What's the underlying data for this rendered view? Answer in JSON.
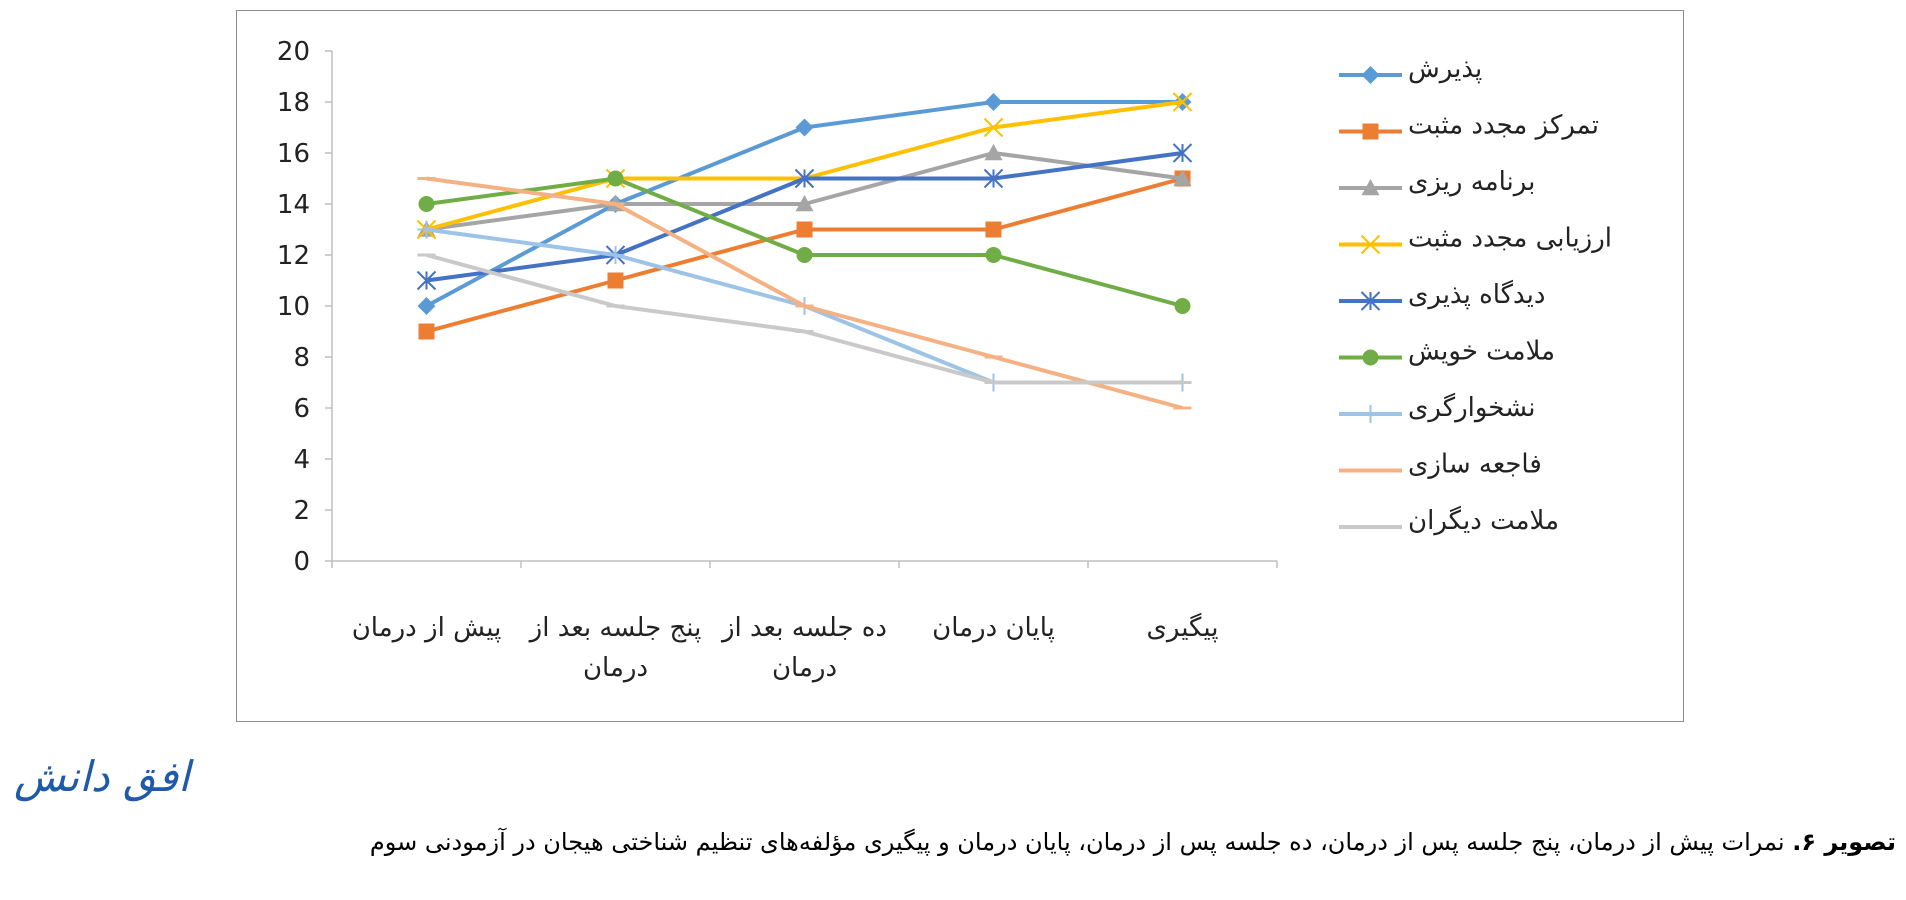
{
  "chart_data": {
    "type": "line",
    "categories": [
      "پیش از درمان",
      "پنج جلسه بعد از درمان",
      "ده جلسه بعد از درمان",
      "پایان درمان",
      "پیگیری"
    ],
    "category_lines": [
      [
        "پیش از درمان"
      ],
      [
        "پنج جلسه بعد از",
        "درمان"
      ],
      [
        "ده جلسه بعد از",
        "درمان"
      ],
      [
        "پایان درمان"
      ],
      [
        "پیگیری"
      ]
    ],
    "ylim": [
      0,
      20
    ],
    "ytick_step": 2,
    "yticks": [
      "0",
      "2",
      "4",
      "6",
      "8",
      "10",
      "12",
      "14",
      "16",
      "18",
      "20"
    ],
    "grid": false,
    "legend_position": "right",
    "series": [
      {
        "name": "پذیرش",
        "color": "#5b9bd5",
        "marker": "diamond",
        "values": [
          10,
          14,
          17,
          18,
          18
        ]
      },
      {
        "name": "تمرکز مجدد مثبت",
        "color": "#ed7d31",
        "marker": "square",
        "values": [
          9,
          11,
          13,
          13,
          15
        ]
      },
      {
        "name": "برنامه ریزی",
        "color": "#a5a5a5",
        "marker": "triangle",
        "values": [
          13,
          14,
          14,
          16,
          15
        ]
      },
      {
        "name": "ارزیابی مجدد مثبت",
        "color": "#ffc000",
        "marker": "x",
        "values": [
          13,
          15,
          15,
          17,
          18
        ]
      },
      {
        "name": "دیدگاه پذیری",
        "color": "#4472c4",
        "marker": "star",
        "values": [
          11,
          12,
          15,
          15,
          16
        ]
      },
      {
        "name": "ملامت خویش",
        "color": "#70ad47",
        "marker": "circle",
        "values": [
          14,
          15,
          12,
          12,
          10
        ]
      },
      {
        "name": "نشخوارگری",
        "color": "#9dc3e6",
        "marker": "plus",
        "values": [
          13,
          12,
          10,
          7,
          7
        ]
      },
      {
        "name": "فاجعه سازی",
        "color": "#f4b183",
        "marker": "dash",
        "values": [
          15,
          14,
          10,
          8,
          6
        ]
      },
      {
        "name": "ملامت دیگران",
        "color": "#c9c9c9",
        "marker": "dash",
        "values": [
          12,
          10,
          9,
          7,
          7
        ]
      }
    ]
  },
  "watermark": "افق دانش",
  "caption": {
    "label": "تصویر ۶.",
    "text": " نمرات پیش از درمان، پنج جلسه پس از درمان، ده جلسه پس از درمان، پایان درمان و پیگیری مؤلفه‌های تنظیم شناختی هیجان در آزمودنی سوم"
  }
}
